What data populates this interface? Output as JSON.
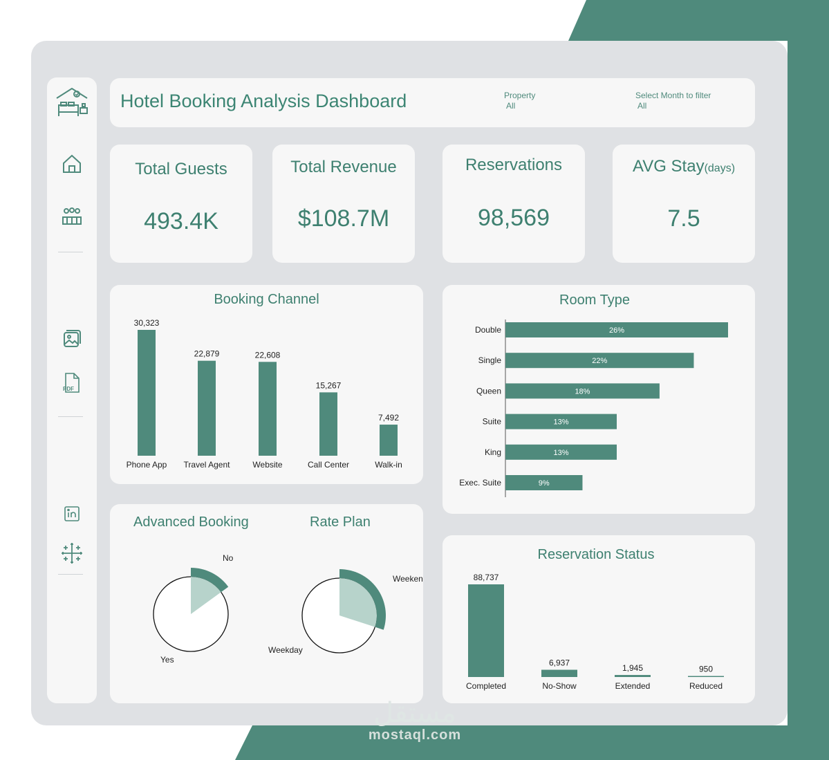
{
  "colors": {
    "accent": "#4f8a7c",
    "panel": "#f7f7f7",
    "frame": "#dfe1e4",
    "light_accent": "#b7d3cb"
  },
  "header": {
    "title": "Hotel Booking Analysis Dashboard",
    "filters": [
      {
        "label": "Property",
        "value": "All"
      },
      {
        "label": "Select Month to filter",
        "value": "All"
      }
    ]
  },
  "sidebar": {
    "icons": [
      "hotel-logo-icon",
      "home-icon",
      "guests-icon",
      "image-icon",
      "pdf-icon",
      "linkedin-icon",
      "tableau-icon"
    ],
    "pdf_text": "PDF"
  },
  "kpis": [
    {
      "label": "Total Guests",
      "value": "493.4K"
    },
    {
      "label": "Total Revenue",
      "value": "$108.7M"
    },
    {
      "label": "Reservations",
      "value": "98,569"
    },
    {
      "label": "AVG Stay",
      "unit": "(days)",
      "value": "7.5"
    }
  ],
  "chart_data": [
    {
      "type": "bar",
      "title": "Booking Channel",
      "categories": [
        "Phone App",
        "Travel Agent",
        "Website",
        "Call Center",
        "Walk-in"
      ],
      "values": [
        30323,
        22879,
        22608,
        15267,
        7492
      ],
      "labels": [
        "30,323",
        "22,879",
        "22,608",
        "15,267",
        "7,492"
      ]
    },
    {
      "type": "bar",
      "orientation": "horizontal",
      "title": "Room Type",
      "categories": [
        "Double",
        "Single",
        "Queen",
        "Suite",
        "King",
        "Exec. Suite"
      ],
      "values": [
        26,
        22,
        18,
        13,
        13,
        9
      ],
      "labels": [
        "26%",
        "22%",
        "18%",
        "13%",
        "13%",
        "9%"
      ]
    },
    {
      "type": "pie",
      "title": "Advanced Booking",
      "categories": [
        "No",
        "Yes"
      ],
      "values": [
        15,
        85
      ],
      "highlight_fraction": 0.15
    },
    {
      "type": "pie",
      "title": "Rate Plan",
      "categories": [
        "Weekend",
        "Weekday"
      ],
      "values": [
        30,
        70
      ],
      "highlight_fraction": 0.3
    },
    {
      "type": "bar",
      "title": "Reservation Status",
      "categories": [
        "Completed",
        "No-Show",
        "Extended",
        "Reduced"
      ],
      "values": [
        88737,
        6937,
        1945,
        950
      ],
      "labels": [
        "88,737",
        "6,937",
        "1,945",
        "950"
      ]
    }
  ],
  "watermark": {
    "arabic": "مستقل",
    "latin": "mostaql.com"
  }
}
